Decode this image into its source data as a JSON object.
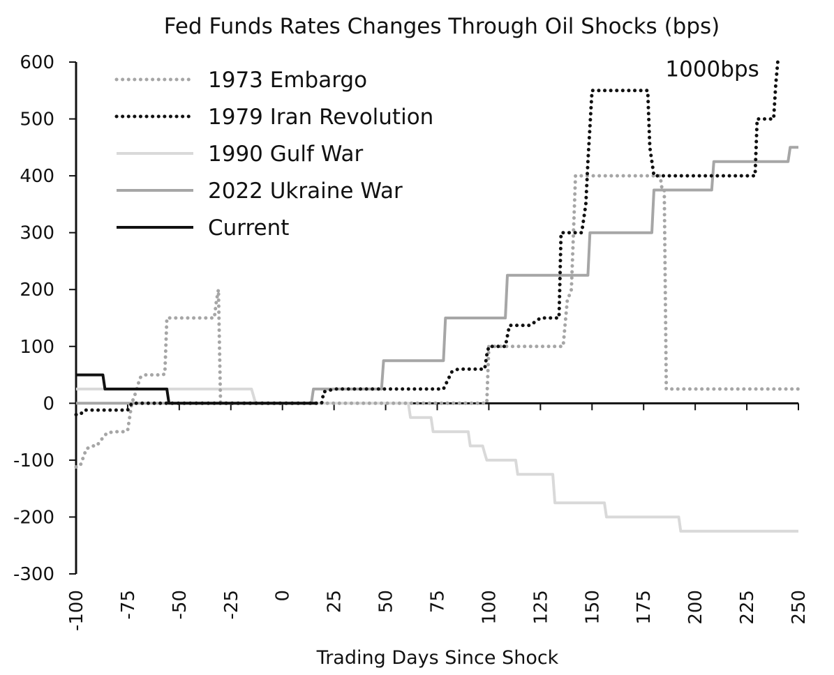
{
  "chart_data": {
    "type": "line",
    "title": "Fed Funds Rates Changes Through Oil Shocks (bps)",
    "xlabel": "Trading Days Since Shock",
    "ylabel": "",
    "xlim": [
      -100,
      250
    ],
    "ylim": [
      -300,
      600
    ],
    "x_ticks": [
      "-100",
      "-75",
      "-50",
      "-25",
      "0",
      "25",
      "50",
      "75",
      "100",
      "125",
      "150",
      "175",
      "200",
      "225",
      "250"
    ],
    "y_ticks": [
      "-300",
      "-200",
      "-100",
      "0",
      "100",
      "200",
      "300",
      "400",
      "500",
      "600"
    ],
    "grid": false,
    "legend_position": "top-left",
    "annotations": [
      {
        "text": "1000bps",
        "x": 231,
        "y": 575
      }
    ],
    "series": [
      {
        "name": "1973 Embargo",
        "style": "dotted",
        "color": "#a6a6a6",
        "x": [
          -100,
          -98,
          -95,
          -92,
          -90,
          -88,
          -85,
          -81,
          -77,
          -75,
          -73,
          -71,
          -69,
          -67,
          -64,
          -61,
          -58,
          -57,
          -56,
          -55,
          -53,
          -50,
          -47,
          -44,
          -41,
          -39,
          -37,
          -35,
          -33,
          -32,
          -31,
          -30,
          -28,
          -25,
          -20,
          -10,
          0,
          10,
          20,
          40,
          60,
          80,
          90,
          95,
          97,
          98,
          99,
          100,
          110,
          120,
          130,
          136,
          137,
          138,
          140,
          141,
          142,
          160,
          180,
          183,
          184,
          185,
          186,
          190,
          200,
          220,
          240,
          250
        ],
        "y": [
          -112,
          -110,
          -80,
          -75,
          -75,
          -65,
          -52,
          -50,
          -50,
          -48,
          0,
          20,
          45,
          50,
          50,
          50,
          50,
          52,
          150,
          150,
          150,
          150,
          150,
          150,
          150,
          150,
          150,
          150,
          150,
          180,
          200,
          0,
          0,
          0,
          0,
          0,
          0,
          0,
          0,
          0,
          0,
          0,
          0,
          0,
          0,
          0,
          0,
          100,
          100,
          100,
          100,
          100,
          140,
          180,
          200,
          300,
          400,
          400,
          400,
          400,
          375,
          375,
          25,
          25,
          25,
          25,
          25,
          25
        ]
      },
      {
        "name": "1979 Iran Revolution",
        "style": "dotted",
        "color": "#111111",
        "x": [
          -100,
          -98,
          -96,
          -95,
          -75,
          -73,
          -70,
          -65,
          -60,
          -50,
          -40,
          -30,
          -20,
          -10,
          0,
          10,
          19,
          20,
          25,
          40,
          60,
          78,
          80,
          82,
          85,
          90,
          95,
          98,
          99,
          100,
          105,
          108,
          110,
          115,
          120,
          125,
          130,
          134,
          135,
          145,
          147,
          148,
          150,
          170,
          175,
          177,
          178,
          180,
          200,
          220,
          229,
          230,
          238,
          239,
          240
        ],
        "y": [
          -20,
          -20,
          -12,
          -12,
          -12,
          0,
          0,
          0,
          0,
          0,
          0,
          0,
          0,
          0,
          0,
          0,
          0,
          20,
          25,
          25,
          25,
          25,
          40,
          55,
          60,
          60,
          60,
          60,
          85,
          100,
          100,
          100,
          137,
          137,
          137,
          150,
          150,
          150,
          300,
          300,
          350,
          425,
          550,
          550,
          550,
          550,
          450,
          400,
          400,
          400,
          400,
          500,
          500,
          560,
          600
        ]
      },
      {
        "name": "1990 Gulf War",
        "style": "solid",
        "color": "#d9d9d9",
        "x": [
          -100,
          -15,
          -13,
          0,
          10,
          25,
          50,
          61,
          62,
          66,
          72,
          73,
          75,
          80,
          90,
          91,
          92,
          97,
          98,
          99,
          100,
          102,
          110,
          113,
          114,
          125,
          131,
          132,
          133,
          135,
          150,
          156,
          157,
          158,
          170,
          190,
          192,
          193,
          194,
          200,
          225,
          250
        ],
        "y": [
          25,
          25,
          0,
          0,
          0,
          0,
          0,
          0,
          -25,
          -25,
          -25,
          -50,
          -50,
          -50,
          -50,
          -75,
          -75,
          -75,
          -88,
          -100,
          -100,
          -100,
          -100,
          -100,
          -125,
          -125,
          -125,
          -175,
          -175,
          -175,
          -175,
          -175,
          -200,
          -200,
          -200,
          -200,
          -200,
          -225,
          -225,
          -225,
          -225,
          -225
        ]
      },
      {
        "name": "2022 Ukraine War",
        "style": "solid",
        "color": "#a6a6a6",
        "x": [
          -100,
          -75,
          -50,
          -25,
          0,
          10,
          14,
          15,
          20,
          30,
          48,
          49,
          50,
          60,
          78,
          79,
          80,
          90,
          108,
          109,
          110,
          120,
          130,
          148,
          149,
          150,
          160,
          179,
          180,
          190,
          200,
          208,
          209,
          210,
          220,
          240,
          245,
          246,
          247,
          250
        ],
        "y": [
          0,
          0,
          0,
          0,
          0,
          0,
          0,
          25,
          25,
          25,
          25,
          75,
          75,
          75,
          75,
          150,
          150,
          150,
          150,
          225,
          225,
          225,
          225,
          225,
          300,
          300,
          300,
          300,
          375,
          375,
          375,
          375,
          425,
          425,
          425,
          425,
          425,
          450,
          450,
          450
        ]
      },
      {
        "name": "Current",
        "style": "solid",
        "color": "#111111",
        "x": [
          -100,
          -87,
          -86,
          -56,
          -55,
          -45,
          -30,
          -15,
          0,
          16
        ],
        "y": [
          50,
          50,
          25,
          25,
          0,
          0,
          0,
          0,
          0,
          0
        ]
      }
    ]
  }
}
